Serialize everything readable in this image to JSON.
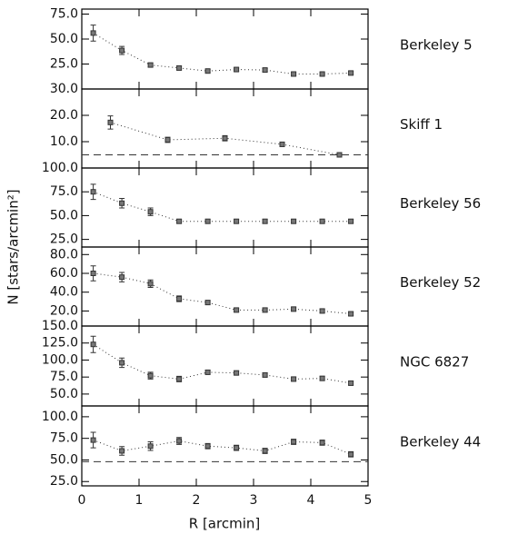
{
  "figure": {
    "xlabel": "R [arcmin]",
    "ylabel": "N [stars/arcmin²]"
  },
  "chart_data": [
    {
      "type": "errorbar",
      "title": "Berkeley 5",
      "color": "#333333",
      "x": [
        0.2,
        0.7,
        1.2,
        1.7,
        2.2,
        2.7,
        3.2,
        3.7,
        4.2,
        4.7
      ],
      "values": [
        56,
        38.6,
        24,
        21,
        18,
        19.5,
        19,
        15,
        15,
        16
      ],
      "errors": [
        8,
        4,
        2,
        2,
        1.5,
        1.5,
        1.5,
        1.5,
        1.5,
        1.5
      ],
      "xlim": [
        0,
        5
      ],
      "xticks": [
        0,
        1,
        2,
        3,
        4,
        5
      ],
      "ylim": [
        0,
        80
      ],
      "yticks": [
        {
          "value": 25,
          "label": "25.0"
        },
        {
          "value": 50,
          "label": "50.0"
        },
        {
          "value": 75,
          "label": "75.0"
        }
      ]
    },
    {
      "type": "errorbar",
      "title": "Skiff 1",
      "color": "#333333",
      "x": [
        0.5,
        1.5,
        2.5,
        3.5,
        4.5
      ],
      "values": [
        17.3,
        10.7,
        11.3,
        9,
        5
      ],
      "errors": [
        2.5,
        1,
        1,
        0.8,
        0.5
      ],
      "background": 5,
      "xlim": [
        0,
        5
      ],
      "xticks": [
        0,
        1,
        2,
        3,
        4,
        5
      ],
      "ylim": [
        0,
        30
      ],
      "yticks": [
        {
          "value": 10,
          "label": "10.0"
        },
        {
          "value": 20,
          "label": "20.0"
        },
        {
          "value": 30,
          "label": "30.0"
        }
      ]
    },
    {
      "type": "errorbar",
      "title": "Berkeley 56",
      "color": "#333333",
      "x": [
        0.2,
        0.7,
        1.2,
        1.7,
        2.2,
        2.7,
        3.2,
        3.7,
        4.2,
        4.7
      ],
      "values": [
        75,
        63,
        54,
        44,
        44,
        44,
        44,
        44,
        44,
        44
      ],
      "errors": [
        8,
        5,
        4,
        2,
        2,
        2,
        2,
        2,
        2,
        2
      ],
      "xlim": [
        0,
        5
      ],
      "xticks": [
        0,
        1,
        2,
        3,
        4,
        5
      ],
      "ylim": [
        17,
        100
      ],
      "yticks": [
        {
          "value": 25,
          "label": "25.0"
        },
        {
          "value": 50,
          "label": "50.0"
        },
        {
          "value": 75,
          "label": "75.0"
        },
        {
          "value": 100,
          "label": "100.0"
        }
      ]
    },
    {
      "type": "errorbar",
      "title": "Berkeley 52",
      "color": "#333333",
      "x": [
        0.2,
        0.7,
        1.2,
        1.7,
        2.2,
        2.7,
        3.2,
        3.7,
        4.2,
        4.7
      ],
      "values": [
        60,
        56,
        49,
        33,
        29,
        21,
        21,
        22,
        20,
        17
      ],
      "errors": [
        8,
        5,
        4,
        3,
        2,
        2,
        2,
        2,
        2,
        2
      ],
      "xlim": [
        0,
        5
      ],
      "xticks": [
        0,
        1,
        2,
        3,
        4,
        5
      ],
      "ylim": [
        4,
        88
      ],
      "yticks": [
        {
          "value": 20,
          "label": "20.0"
        },
        {
          "value": 40,
          "label": "40.0"
        },
        {
          "value": 60,
          "label": "60.0"
        },
        {
          "value": 80,
          "label": "80.0"
        }
      ]
    },
    {
      "type": "errorbar",
      "title": "NGC 6827",
      "color": "#333333",
      "x": [
        0.2,
        0.7,
        1.2,
        1.7,
        2.2,
        2.7,
        3.2,
        3.7,
        4.2,
        4.7
      ],
      "values": [
        123,
        96,
        77,
        72,
        82,
        81,
        78,
        72,
        73,
        66
      ],
      "errors": [
        12,
        7,
        5,
        4,
        3,
        3,
        3,
        3,
        3,
        3
      ],
      "xlim": [
        0,
        5
      ],
      "xticks": [
        0,
        1,
        2,
        3,
        4,
        5
      ],
      "ylim": [
        32.5,
        150
      ],
      "yticks": [
        {
          "value": 50,
          "label": "50.0"
        },
        {
          "value": 75,
          "label": "75.0"
        },
        {
          "value": 100,
          "label": "100.0"
        },
        {
          "value": 125,
          "label": "125.0"
        },
        {
          "value": 150,
          "label": "150.0"
        }
      ]
    },
    {
      "type": "errorbar",
      "title": "Berkeley 44",
      "color": "#333333",
      "x": [
        0.2,
        0.7,
        1.2,
        1.7,
        2.2,
        2.7,
        3.2,
        3.7,
        4.2,
        4.7
      ],
      "values": [
        73,
        60.5,
        66,
        72,
        66,
        64,
        60.5,
        71,
        70,
        56.5
      ],
      "errors": [
        9,
        5,
        5,
        4,
        3,
        3,
        3,
        3,
        3,
        3
      ],
      "background": 48,
      "xlim": [
        0,
        5
      ],
      "xticks": [
        0,
        1,
        2,
        3,
        4,
        5
      ],
      "ylim": [
        20,
        112.5
      ],
      "yticks": [
        {
          "value": 25,
          "label": "25.0"
        },
        {
          "value": 50,
          "label": "50.0"
        },
        {
          "value": 75,
          "label": "75.0"
        },
        {
          "value": 100,
          "label": "100.0"
        }
      ]
    }
  ]
}
